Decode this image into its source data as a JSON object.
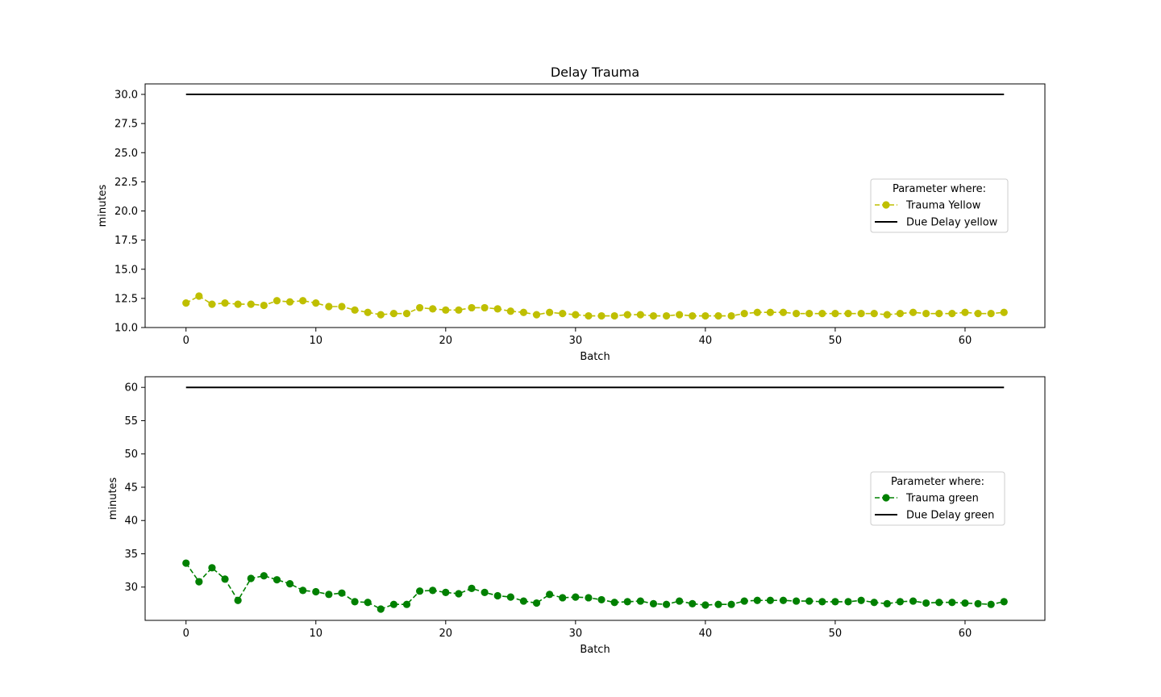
{
  "figure": {
    "title": "Delay Trauma"
  },
  "chart_data": [
    {
      "type": "line",
      "title": "Delay Trauma",
      "xlabel": "Batch",
      "ylabel": "minutes",
      "xlim": [
        -3.15,
        66.15
      ],
      "ylim": [
        10.0,
        30.9
      ],
      "xticks": [
        0,
        10,
        20,
        30,
        40,
        50,
        60
      ],
      "yticks": [
        10.0,
        12.5,
        15.0,
        17.5,
        20.0,
        22.5,
        25.0,
        27.5,
        30.0
      ],
      "ytick_decimals": 1,
      "grid": false,
      "legend": {
        "title": "Parameter where:",
        "position": "center-right"
      },
      "series": [
        {
          "name": "Trauma Yellow",
          "color": "#bfbf00",
          "style": "dashed-with-markers",
          "x": [
            0,
            1,
            2,
            3,
            4,
            5,
            6,
            7,
            8,
            9,
            10,
            11,
            12,
            13,
            14,
            15,
            16,
            17,
            18,
            19,
            20,
            21,
            22,
            23,
            24,
            25,
            26,
            27,
            28,
            29,
            30,
            31,
            32,
            33,
            34,
            35,
            36,
            37,
            38,
            39,
            40,
            41,
            42,
            43,
            44,
            45,
            46,
            47,
            48,
            49,
            50,
            51,
            52,
            53,
            54,
            55,
            56,
            57,
            58,
            59,
            60,
            61,
            62,
            63
          ],
          "values": [
            12.1,
            12.7,
            12.0,
            12.1,
            12.0,
            12.0,
            11.9,
            12.3,
            12.2,
            12.3,
            12.1,
            11.8,
            11.8,
            11.5,
            11.3,
            11.1,
            11.2,
            11.2,
            11.7,
            11.6,
            11.5,
            11.5,
            11.7,
            11.7,
            11.6,
            11.4,
            11.3,
            11.1,
            11.3,
            11.2,
            11.1,
            11.0,
            11.0,
            11.0,
            11.1,
            11.1,
            11.0,
            11.0,
            11.1,
            11.0,
            11.0,
            11.0,
            11.0,
            11.2,
            11.3,
            11.3,
            11.3,
            11.2,
            11.2,
            11.2,
            11.2,
            11.2,
            11.2,
            11.2,
            11.1,
            11.2,
            11.3,
            11.2,
            11.2,
            11.2,
            11.3,
            11.2,
            11.2,
            11.3
          ]
        },
        {
          "name": "Due Delay yellow",
          "color": "#000000",
          "style": "solid",
          "x": [
            0,
            63
          ],
          "values": [
            30.0,
            30.0
          ]
        }
      ]
    },
    {
      "type": "line",
      "title": "",
      "xlabel": "Batch",
      "ylabel": "minutes",
      "xlim": [
        -3.15,
        66.15
      ],
      "ylim": [
        25.0,
        61.6
      ],
      "xticks": [
        0,
        10,
        20,
        30,
        40,
        50,
        60
      ],
      "yticks": [
        30,
        35,
        40,
        45,
        50,
        55,
        60
      ],
      "ytick_decimals": 0,
      "grid": false,
      "legend": {
        "title": "Parameter where:",
        "position": "center-right"
      },
      "series": [
        {
          "name": "Trauma green",
          "color": "#008000",
          "style": "dashed-with-markers",
          "x": [
            0,
            1,
            2,
            3,
            4,
            5,
            6,
            7,
            8,
            9,
            10,
            11,
            12,
            13,
            14,
            15,
            16,
            17,
            18,
            19,
            20,
            21,
            22,
            23,
            24,
            25,
            26,
            27,
            28,
            29,
            30,
            31,
            32,
            33,
            34,
            35,
            36,
            37,
            38,
            39,
            40,
            41,
            42,
            43,
            44,
            45,
            46,
            47,
            48,
            49,
            50,
            51,
            52,
            53,
            54,
            55,
            56,
            57,
            58,
            59,
            60,
            61,
            62,
            63
          ],
          "values": [
            33.6,
            30.8,
            32.9,
            31.2,
            28.0,
            31.3,
            31.7,
            31.1,
            30.5,
            29.5,
            29.3,
            28.9,
            29.1,
            27.8,
            27.7,
            26.7,
            27.4,
            27.4,
            29.4,
            29.5,
            29.2,
            29.0,
            29.8,
            29.2,
            28.7,
            28.5,
            27.9,
            27.6,
            28.9,
            28.4,
            28.5,
            28.4,
            28.1,
            27.7,
            27.8,
            27.9,
            27.5,
            27.4,
            27.9,
            27.5,
            27.3,
            27.4,
            27.4,
            27.9,
            28.0,
            28.0,
            28.0,
            27.9,
            27.9,
            27.8,
            27.8,
            27.8,
            28.0,
            27.7,
            27.5,
            27.8,
            27.9,
            27.6,
            27.7,
            27.7,
            27.6,
            27.5,
            27.4,
            27.8
          ]
        },
        {
          "name": "Due Delay green",
          "color": "#000000",
          "style": "solid",
          "x": [
            0,
            63
          ],
          "values": [
            60.0,
            60.0
          ]
        }
      ]
    }
  ]
}
